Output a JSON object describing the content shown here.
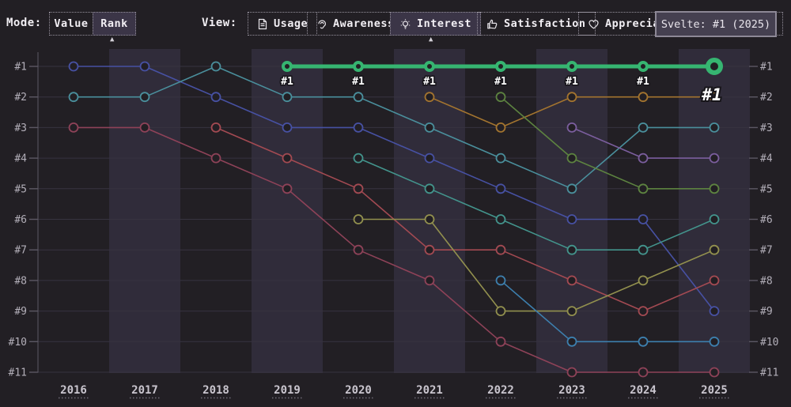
{
  "toolbar": {
    "mode": {
      "label": "Mode:",
      "buttons": [
        {
          "label": "Value",
          "selected": false
        },
        {
          "label": "Rank",
          "selected": true
        }
      ]
    },
    "view": {
      "label": "View:",
      "buttons": [
        {
          "label": "Usage",
          "icon": "document-icon",
          "selected": false
        },
        {
          "label": "Awareness",
          "icon": "ear-icon",
          "selected": false
        },
        {
          "label": "Interest",
          "icon": "lightbulb-icon",
          "selected": true
        },
        {
          "label": "Satisfaction",
          "icon": "thumbs-up-icon",
          "selected": false
        },
        {
          "label": "Appreciation",
          "icon": "heart-icon",
          "selected": false
        }
      ]
    }
  },
  "tooltip": {
    "text": "Svelte: #1 (2025)"
  },
  "colors": {
    "background": "#221f24",
    "year_band": "#302c3a",
    "gridline": "#373340",
    "axis": "#5c5864",
    "highlight_green": "#36b571",
    "selected_button_bg": "#3b3547",
    "tooltip_bg": "#454050",
    "tooltip_border": "#8d8896"
  },
  "chart_data": {
    "type": "line",
    "mode": "rank",
    "title": "",
    "x_tick_labels": [
      "2016",
      "2017",
      "2018",
      "2019",
      "2020",
      "2021",
      "2022",
      "2023",
      "2024",
      "2025"
    ],
    "rank_tick_labels": [
      "#1",
      "#2",
      "#3",
      "#4",
      "#5",
      "#6",
      "#7",
      "#8",
      "#9",
      "#10",
      "#11"
    ],
    "years": [
      2016,
      2017,
      2018,
      2019,
      2020,
      2021,
      2022,
      2023,
      2024,
      2025
    ],
    "rank_range": [
      1,
      11
    ],
    "legend": "none",
    "grid": "horizontal",
    "highlighted_series": "svelte",
    "highlight_endpoint_label": "#1",
    "series": [
      {
        "id": "series-indigo",
        "color": "#4751a3",
        "years": [
          2016,
          2017,
          2018,
          2019,
          2020,
          2021,
          2022,
          2023,
          2024,
          2025
        ],
        "ranks": [
          1,
          1,
          2,
          3,
          3,
          4,
          5,
          6,
          6,
          9
        ]
      },
      {
        "id": "series-teal",
        "color": "#4a8f9c",
        "years": [
          2016,
          2017,
          2018,
          2019,
          2020,
          2021,
          2022,
          2023,
          2024,
          2025
        ],
        "ranks": [
          2,
          2,
          1,
          2,
          2,
          3,
          4,
          5,
          3,
          3
        ]
      },
      {
        "id": "series-rose",
        "color": "#8e4258",
        "years": [
          2016,
          2017,
          2018,
          2019,
          2020,
          2021,
          2022,
          2023,
          2024,
          2025
        ],
        "ranks": [
          3,
          3,
          4,
          5,
          7,
          8,
          10,
          11,
          11,
          11
        ]
      },
      {
        "id": "series-red",
        "color": "#a34a52",
        "years": [
          2018,
          2019,
          2020,
          2021,
          2022,
          2023,
          2024,
          2025
        ],
        "ranks": [
          3,
          4,
          5,
          7,
          7,
          8,
          9,
          8
        ]
      },
      {
        "id": "series-teal-2",
        "color": "#43948c",
        "years": [
          2020,
          2021,
          2022,
          2023,
          2024,
          2025
        ],
        "ranks": [
          4,
          5,
          6,
          7,
          7,
          6
        ]
      },
      {
        "id": "series-olive",
        "color": "#92904e",
        "years": [
          2020,
          2021,
          2022,
          2023,
          2024,
          2025
        ],
        "ranks": [
          6,
          6,
          9,
          9,
          8,
          7
        ]
      },
      {
        "id": "series-orange",
        "color": "#a3742f",
        "years": [
          2021,
          2022,
          2023,
          2024,
          2025
        ],
        "ranks": [
          2,
          3,
          2,
          2,
          2
        ]
      },
      {
        "id": "series-green",
        "color": "#5d8340",
        "years": [
          2022,
          2023,
          2024,
          2025
        ],
        "ranks": [
          2,
          4,
          5,
          5
        ]
      },
      {
        "id": "series-blue",
        "color": "#3d7fae",
        "years": [
          2022,
          2023,
          2024,
          2025
        ],
        "ranks": [
          8,
          10,
          10,
          10
        ]
      },
      {
        "id": "series-purple",
        "color": "#7b5e9e",
        "years": [
          2023,
          2024,
          2025
        ],
        "ranks": [
          3,
          4,
          4
        ]
      },
      {
        "id": "svelte",
        "color": "#36b571",
        "highlighted": true,
        "years": [
          2019,
          2020,
          2021,
          2022,
          2023,
          2024,
          2025
        ],
        "ranks": [
          1,
          1,
          1,
          1,
          1,
          1,
          1
        ],
        "point_labels": [
          "#1",
          "#1",
          "#1",
          "#1",
          "#1",
          "#1",
          "#1"
        ]
      }
    ]
  }
}
